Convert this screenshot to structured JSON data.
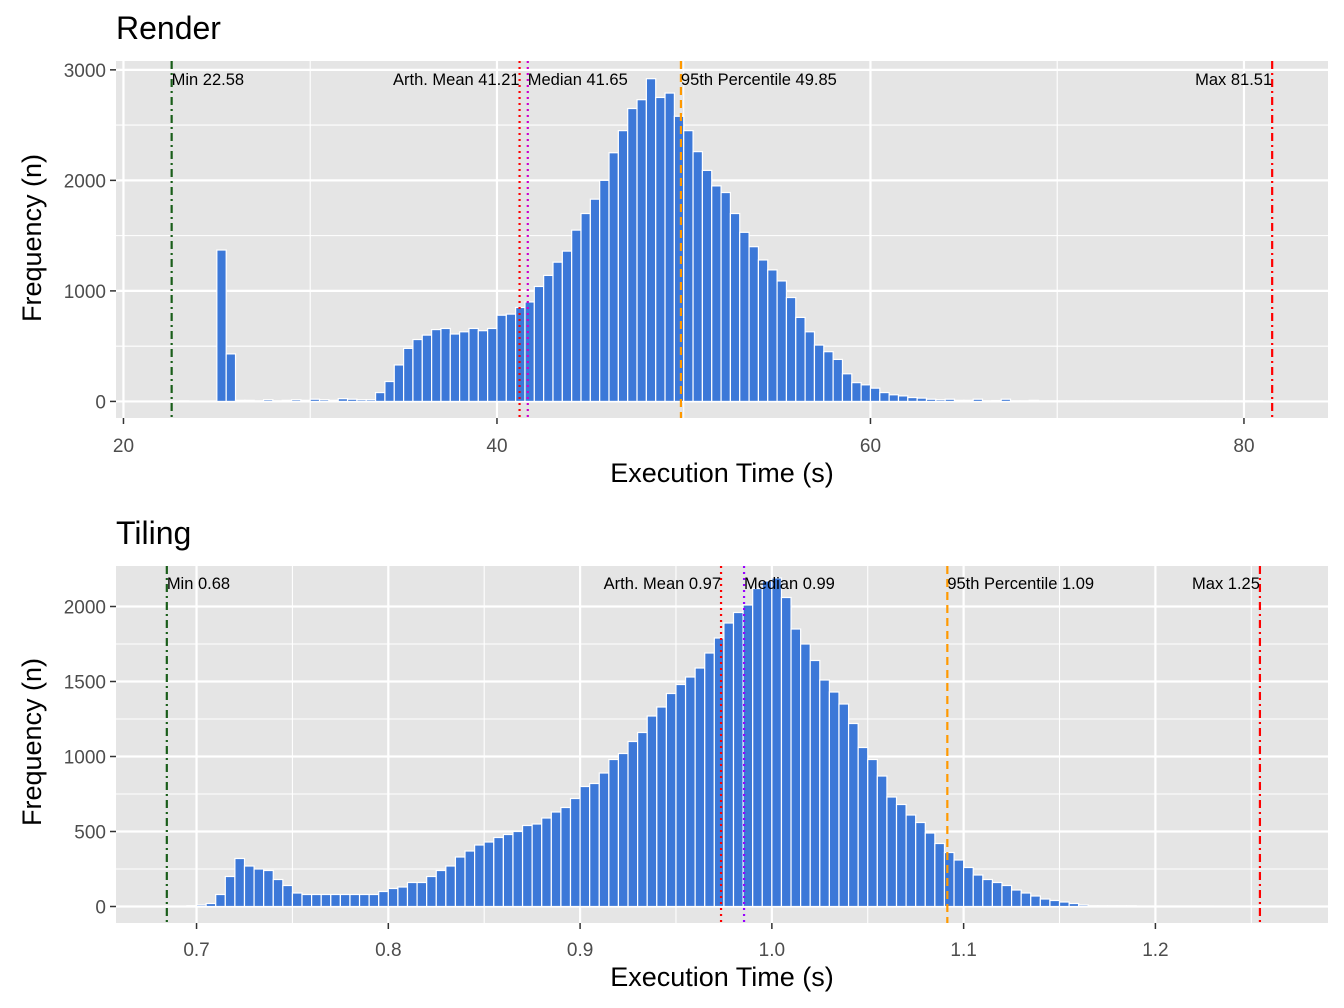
{
  "chart_data": [
    {
      "type": "bar",
      "title": "Render",
      "xlabel": "Execution Time (s)",
      "ylabel": "Frequency (n)",
      "xlim": [
        19.6,
        84.5
      ],
      "ylim": [
        -150,
        3080
      ],
      "xticks": [
        20,
        40,
        60,
        80
      ],
      "yticks": [
        0,
        1000,
        2000,
        3000
      ],
      "xtick_labels": [
        "20",
        "40",
        "60",
        "80"
      ],
      "ytick_labels": [
        "0",
        "1000",
        "2000",
        "3000"
      ],
      "bin_start": 22.5,
      "bin_width": 0.5,
      "bar_fill": "#3c78d8",
      "panel_bg": "#e5e5e5",
      "grid": true,
      "values": [
        0,
        5,
        3,
        0,
        0,
        1370,
        430,
        10,
        10,
        5,
        15,
        5,
        10,
        15,
        10,
        20,
        15,
        10,
        25,
        20,
        15,
        15,
        80,
        180,
        330,
        480,
        560,
        600,
        650,
        660,
        610,
        630,
        660,
        640,
        660,
        780,
        790,
        850,
        900,
        1040,
        1140,
        1260,
        1360,
        1550,
        1700,
        1830,
        2000,
        2250,
        2450,
        2650,
        2730,
        2920,
        2750,
        2790,
        2580,
        2450,
        2260,
        2090,
        1950,
        1890,
        1700,
        1530,
        1400,
        1280,
        1190,
        1090,
        940,
        760,
        630,
        510,
        450,
        380,
        250,
        170,
        150,
        120,
        80,
        60,
        50,
        35,
        30,
        20,
        15,
        20,
        10,
        10,
        20,
        5,
        8,
        20,
        5,
        5,
        10,
        5,
        5,
        5,
        5,
        5,
        5,
        5,
        5,
        5,
        5,
        5,
        5,
        5,
        5,
        5,
        5,
        5,
        5,
        5,
        5,
        5,
        5,
        5,
        5,
        3,
        3,
        3,
        3,
        3,
        3,
        3
      ],
      "annotations": [
        {
          "label": "Min 22.58",
          "x": 22.58,
          "color": "#1a5e1a",
          "dash": "dashdot",
          "anchor": "start"
        },
        {
          "label": "Arth. Mean 41.21",
          "x": 41.21,
          "color": "#ff0000",
          "dash": "dotted",
          "anchor": "end"
        },
        {
          "label": "Median 41.65",
          "x": 41.65,
          "color": "#cc00cc",
          "dash": "dotted",
          "anchor": "start"
        },
        {
          "label": "95th Percentile 49.85",
          "x": 49.85,
          "color": "#ff9900",
          "dash": "dashed",
          "anchor": "start"
        },
        {
          "label": "Max 81.51",
          "x": 81.51,
          "color": "#ff0000",
          "dash": "dashdot",
          "anchor": "end"
        }
      ]
    },
    {
      "type": "bar",
      "title": "Tiling",
      "xlabel": "Execution Time (s)",
      "ylabel": "Frequency (n)",
      "xlim": [
        0.658,
        1.29
      ],
      "ylim": [
        -110,
        2270
      ],
      "xticks": [
        0.7,
        0.8,
        0.9,
        1.0,
        1.1,
        1.2
      ],
      "yticks": [
        0,
        500,
        1000,
        1500,
        2000
      ],
      "xtick_labels": [
        "0.7",
        "0.8",
        "0.9",
        "1.0",
        "1.1",
        "1.2"
      ],
      "ytick_labels": [
        "0",
        "500",
        "1000",
        "1500",
        "2000"
      ],
      "bin_start": 0.69,
      "bin_width": 0.005,
      "bar_fill": "#3c78d8",
      "panel_bg": "#e5e5e5",
      "grid": true,
      "values": [
        0,
        5,
        10,
        20,
        80,
        200,
        320,
        270,
        250,
        240,
        180,
        140,
        90,
        80,
        80,
        80,
        80,
        80,
        80,
        80,
        80,
        100,
        120,
        130,
        160,
        160,
        200,
        240,
        270,
        330,
        370,
        410,
        430,
        460,
        480,
        500,
        540,
        550,
        590,
        630,
        660,
        720,
        800,
        820,
        890,
        980,
        1020,
        1100,
        1160,
        1270,
        1330,
        1420,
        1480,
        1530,
        1590,
        1690,
        1790,
        1890,
        1960,
        2010,
        2120,
        2170,
        2190,
        2060,
        1850,
        1750,
        1640,
        1510,
        1430,
        1350,
        1220,
        1060,
        980,
        870,
        730,
        680,
        610,
        560,
        490,
        420,
        360,
        310,
        260,
        210,
        180,
        160,
        140,
        110,
        90,
        70,
        50,
        40,
        30,
        20,
        10,
        5,
        5,
        5,
        5,
        5,
        3,
        3,
        3,
        3,
        3,
        3,
        3,
        3
      ],
      "annotations": [
        {
          "label": "Min 0.68",
          "x": 0.6845,
          "color": "#1a5e1a",
          "dash": "dashdot",
          "anchor": "start"
        },
        {
          "label": "Arth. Mean 0.97",
          "x": 0.9735,
          "color": "#ff0000",
          "dash": "dotted",
          "anchor": "end"
        },
        {
          "label": "Median 0.99",
          "x": 0.9855,
          "color": "#9900ff",
          "dash": "dotted",
          "anchor": "start"
        },
        {
          "label": "95th Percentile 1.09",
          "x": 1.0915,
          "color": "#ff9900",
          "dash": "dashed",
          "anchor": "start"
        },
        {
          "label": "Max 1.25",
          "x": 1.2545,
          "color": "#ff0000",
          "dash": "dashdot",
          "anchor": "end"
        }
      ]
    }
  ]
}
